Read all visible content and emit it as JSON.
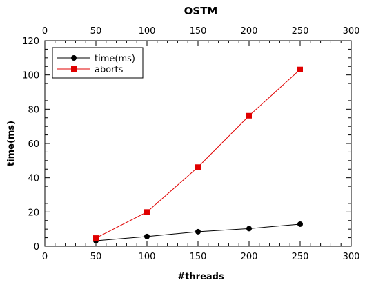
{
  "chart_data": {
    "type": "line",
    "title": "OSTM",
    "xlabel": "#threads",
    "ylabel": "time(ms)",
    "x": [
      50,
      100,
      150,
      200,
      250
    ],
    "xlim": [
      0,
      300
    ],
    "ylim": [
      0,
      120
    ],
    "x_ticks": [
      "0",
      "50",
      "100",
      "150",
      "200",
      "250",
      "300"
    ],
    "y_ticks": [
      "0",
      "20",
      "40",
      "60",
      "80",
      "100",
      "120"
    ],
    "top_axis_ticks": true,
    "grid": false,
    "legend_position": "top-left",
    "series": [
      {
        "name": "time(ms)",
        "values": [
          3.2,
          5.7,
          8.5,
          10.3,
          12.9
        ],
        "color": "#000000",
        "marker": "circle"
      },
      {
        "name": "aborts",
        "values": [
          4.8,
          20,
          46.2,
          76.2,
          103.2
        ],
        "color": "#e00000",
        "marker": "square"
      }
    ]
  }
}
